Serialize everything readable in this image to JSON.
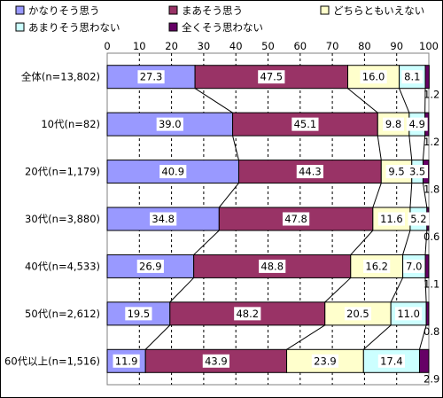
{
  "chart_data": {
    "type": "bar",
    "orientation": "horizontal",
    "stacked": true,
    "percent": true,
    "categories": [
      "全体(n=13,802)",
      "10代(n=82)",
      "20代(n=1,179)",
      "30代(n=3,880)",
      "40代(n=4,533)",
      "50代(n=2,612)",
      "60代以上(n=1,516)"
    ],
    "series": [
      {
        "name": "かなりそう思う",
        "color": "#9999ff",
        "values": [
          27.3,
          39.0,
          40.9,
          34.8,
          26.9,
          19.5,
          11.9
        ]
      },
      {
        "name": "まあそう思う",
        "color": "#993366",
        "values": [
          47.5,
          45.1,
          44.3,
          47.8,
          48.8,
          48.2,
          43.9
        ]
      },
      {
        "name": "どちらともいえない",
        "color": "#ffffcc",
        "values": [
          16.0,
          9.8,
          9.5,
          11.6,
          16.2,
          20.5,
          23.9
        ]
      },
      {
        "name": "あまりそう思わない",
        "color": "#ccffff",
        "values": [
          8.1,
          4.9,
          3.5,
          5.2,
          7.0,
          11.0,
          17.4
        ]
      },
      {
        "name": "全くそう思わない",
        "color": "#660066",
        "values": [
          1.2,
          1.2,
          1.8,
          0.6,
          1.1,
          0.8,
          2.9
        ]
      }
    ],
    "value_labels": [
      [
        "27.3",
        "47.5",
        "16.0",
        "8.1",
        "1.2"
      ],
      [
        "39.0",
        "45.1",
        "9.8",
        "4.9",
        "1.2"
      ],
      [
        "40.9",
        "44.3",
        "9.5",
        "3.5",
        "1.8"
      ],
      [
        "34.8",
        "47.8",
        "11.6",
        "5.2",
        "0.6"
      ],
      [
        "26.9",
        "48.8",
        "16.2",
        "7.0",
        "1.1"
      ],
      [
        "19.5",
        "48.2",
        "20.5",
        "11.0",
        "0.8"
      ],
      [
        "11.9",
        "43.9",
        "23.9",
        "17.4",
        "2.9"
      ]
    ],
    "xlim": [
      0,
      100
    ],
    "xticks": [
      "0",
      "10",
      "20",
      "30",
      "40",
      "50",
      "60",
      "70",
      "80",
      "90",
      "100"
    ],
    "grid": "vertical-dashed",
    "series_connector_lines": true,
    "legend_position": "top",
    "title": "",
    "xlabel": "",
    "ylabel": ""
  }
}
